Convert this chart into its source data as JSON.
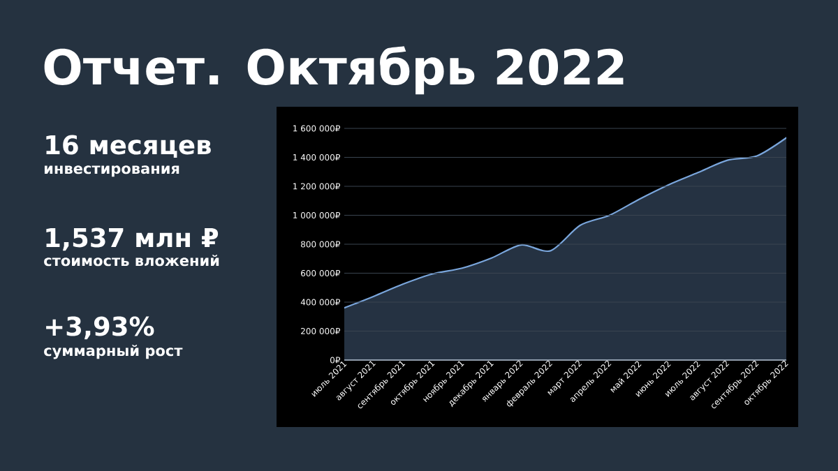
{
  "chart_data": {
    "type": "area",
    "title": "Отчет. Октябрь 2022",
    "annotations": [
      "16 месяцев",
      "инвестирования",
      "1,537 млн ₽",
      "стоимость вложений",
      "+3,93%",
      "суммарный рост"
    ],
    "categories": [
      "июль 2021",
      "август 2021",
      "сентябрь 2021",
      "октябрь 2021",
      "ноябрь 2021",
      "декабрь 2021",
      "январь 2022",
      "февраль 2022",
      "март 2022",
      "апрель 2022",
      "май 2022",
      "июнь 2022",
      "июль 2022",
      "август 2022",
      "сентябрь 2022",
      "октябрь 2022"
    ],
    "values": [
      360000,
      440000,
      525000,
      595000,
      635000,
      705000,
      795000,
      755000,
      930000,
      1000000,
      1110000,
      1210000,
      1295000,
      1380000,
      1410000,
      1535000
    ],
    "color": "#7aa6dc",
    "ylim": [
      0,
      1600000
    ],
    "yticks": [
      {
        "value": 0,
        "label": "0₽"
      },
      {
        "value": 200000,
        "label": "200 000₽"
      },
      {
        "value": 400000,
        "label": "400 000₽"
      },
      {
        "value": 600000,
        "label": "600 000₽"
      },
      {
        "value": 800000,
        "label": "800 000₽"
      },
      {
        "value": 1000000,
        "label": "1 000 000₽"
      },
      {
        "value": 1200000,
        "label": "1 200 000₽"
      },
      {
        "value": 1400000,
        "label": "1 400 000₽"
      },
      {
        "value": 1600000,
        "label": "1 600 000₽"
      }
    ],
    "grid": "y"
  }
}
